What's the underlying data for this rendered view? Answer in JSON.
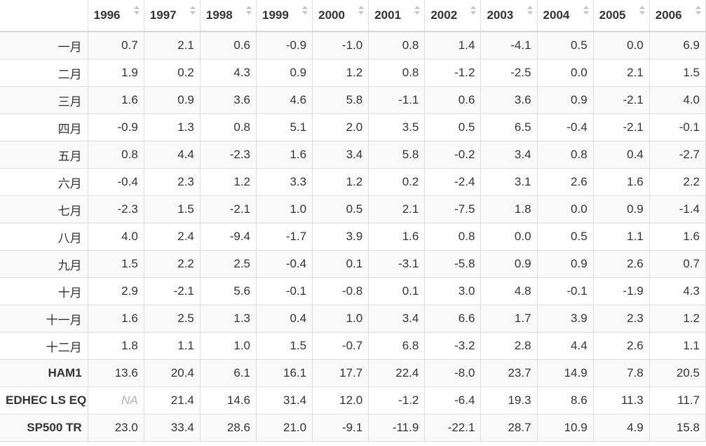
{
  "table": {
    "corner": "",
    "years": [
      "1996",
      "1997",
      "1998",
      "1999",
      "2000",
      "2001",
      "2002",
      "2003",
      "2004",
      "2005",
      "2006"
    ],
    "rows": [
      {
        "label": "一月",
        "bold": false,
        "values": [
          "0.7",
          "2.1",
          "0.6",
          "-0.9",
          "-1.0",
          "0.8",
          "1.4",
          "-4.1",
          "0.5",
          "0.0",
          "6.9"
        ]
      },
      {
        "label": "二月",
        "bold": false,
        "values": [
          "1.9",
          "0.2",
          "4.3",
          "0.9",
          "1.2",
          "0.8",
          "-1.2",
          "-2.5",
          "0.0",
          "2.1",
          "1.5"
        ]
      },
      {
        "label": "三月",
        "bold": false,
        "values": [
          "1.6",
          "0.9",
          "3.6",
          "4.6",
          "5.8",
          "-1.1",
          "0.6",
          "3.6",
          "0.9",
          "-2.1",
          "4.0"
        ]
      },
      {
        "label": "四月",
        "bold": false,
        "values": [
          "-0.9",
          "1.3",
          "0.8",
          "5.1",
          "2.0",
          "3.5",
          "0.5",
          "6.5",
          "-0.4",
          "-2.1",
          "-0.1"
        ]
      },
      {
        "label": "五月",
        "bold": false,
        "values": [
          "0.8",
          "4.4",
          "-2.3",
          "1.6",
          "3.4",
          "5.8",
          "-0.2",
          "3.4",
          "0.8",
          "0.4",
          "-2.7"
        ]
      },
      {
        "label": "六月",
        "bold": false,
        "values": [
          "-0.4",
          "2.3",
          "1.2",
          "3.3",
          "1.2",
          "0.2",
          "-2.4",
          "3.1",
          "2.6",
          "1.6",
          "2.2"
        ]
      },
      {
        "label": "七月",
        "bold": false,
        "values": [
          "-2.3",
          "1.5",
          "-2.1",
          "1.0",
          "0.5",
          "2.1",
          "-7.5",
          "1.8",
          "0.0",
          "0.9",
          "-1.4"
        ]
      },
      {
        "label": "八月",
        "bold": false,
        "values": [
          "4.0",
          "2.4",
          "-9.4",
          "-1.7",
          "3.9",
          "1.6",
          "0.8",
          "0.0",
          "0.5",
          "1.1",
          "1.6"
        ]
      },
      {
        "label": "九月",
        "bold": false,
        "values": [
          "1.5",
          "2.2",
          "2.5",
          "-0.4",
          "0.1",
          "-3.1",
          "-5.8",
          "0.9",
          "0.9",
          "2.6",
          "0.7"
        ]
      },
      {
        "label": "十月",
        "bold": false,
        "values": [
          "2.9",
          "-2.1",
          "5.6",
          "-0.1",
          "-0.8",
          "0.1",
          "3.0",
          "4.8",
          "-0.1",
          "-1.9",
          "4.3"
        ]
      },
      {
        "label": "十一月",
        "bold": false,
        "values": [
          "1.6",
          "2.5",
          "1.3",
          "0.4",
          "1.0",
          "3.4",
          "6.6",
          "1.7",
          "3.9",
          "2.3",
          "1.2"
        ]
      },
      {
        "label": "十二月",
        "bold": false,
        "values": [
          "1.8",
          "1.1",
          "1.0",
          "1.5",
          "-0.7",
          "6.8",
          "-3.2",
          "2.8",
          "4.4",
          "2.6",
          "1.1"
        ]
      },
      {
        "label": "HAM1",
        "bold": true,
        "values": [
          "13.6",
          "20.4",
          "6.1",
          "16.1",
          "17.7",
          "22.4",
          "-8.0",
          "23.7",
          "14.9",
          "7.8",
          "20.5"
        ]
      },
      {
        "label": "EDHEC LS EQ",
        "bold": true,
        "values": [
          "NA",
          "21.4",
          "14.6",
          "31.4",
          "12.0",
          "-1.2",
          "-6.4",
          "19.3",
          "8.6",
          "11.3",
          "11.7"
        ]
      },
      {
        "label": "SP500 TR",
        "bold": true,
        "values": [
          "23.0",
          "33.4",
          "28.6",
          "21.0",
          "-9.1",
          "-11.9",
          "-22.1",
          "28.7",
          "10.9",
          "4.9",
          "15.8"
        ]
      }
    ]
  }
}
